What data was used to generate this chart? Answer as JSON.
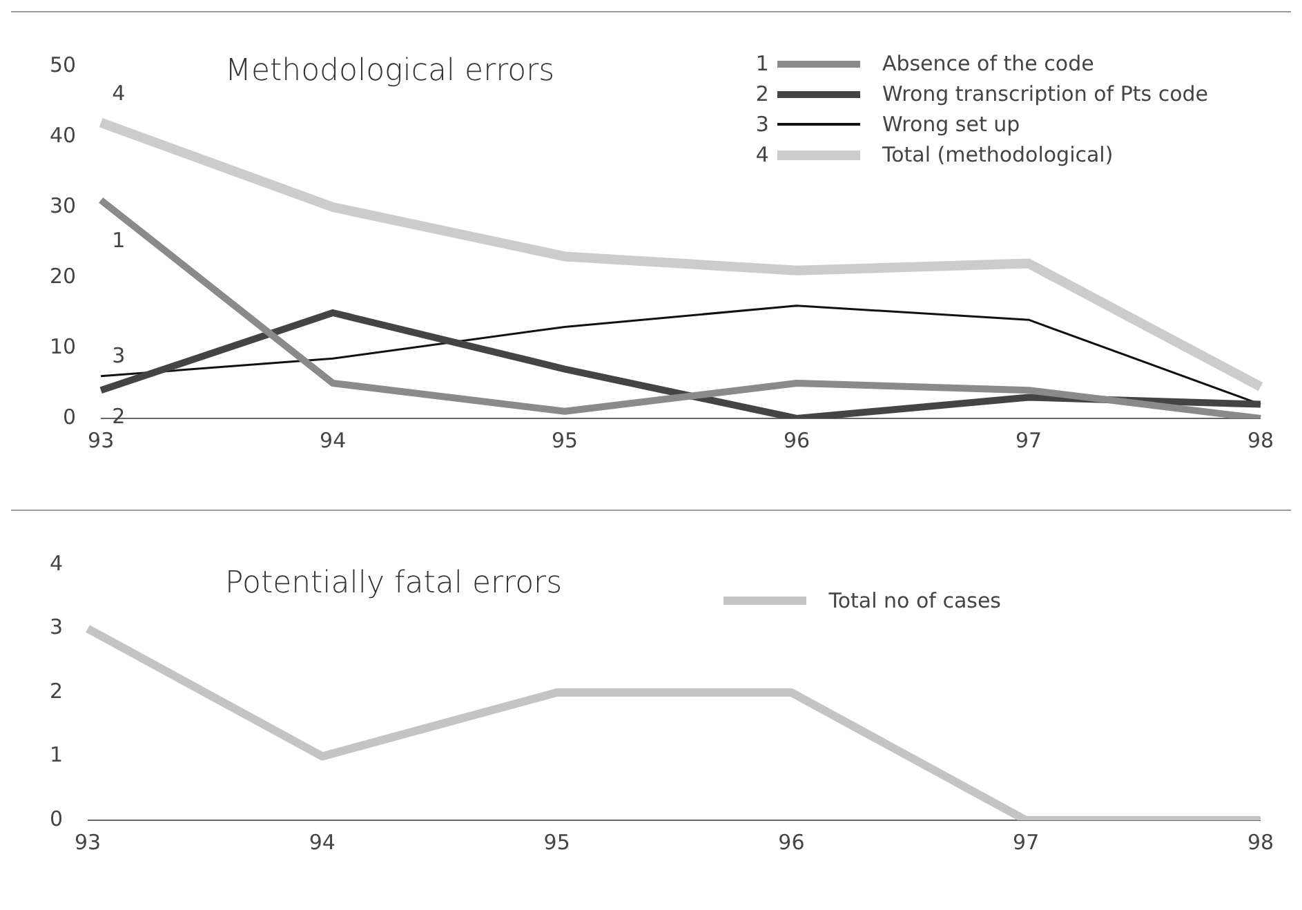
{
  "chart_data": [
    {
      "type": "line",
      "title": "Methodological errors",
      "categories": [
        "93",
        "94",
        "95",
        "96",
        "97",
        "98"
      ],
      "ylim": [
        0,
        50
      ],
      "yticks": [
        0,
        10,
        20,
        30,
        40,
        50
      ],
      "grid": false,
      "legend": "top right",
      "marker": "none",
      "series": [
        {
          "name": "Absence of the code",
          "color": "#8a8a8a",
          "values": [
            31,
            5,
            1,
            5,
            4,
            0
          ]
        },
        {
          "name": "Wrong transcription of Pts code",
          "color": "#444444",
          "values": [
            4,
            15,
            7,
            0,
            3,
            2
          ]
        },
        {
          "name": "Wrong set up",
          "color": "#111111",
          "values": [
            6,
            8.5,
            13,
            16,
            14,
            2
          ]
        },
        {
          "name": "Total (methodological)",
          "color": "#cccccc",
          "values": [
            42,
            30,
            23,
            21,
            22,
            4.5
          ]
        }
      ],
      "annotations": [
        "1",
        "2",
        "3",
        "4"
      ]
    },
    {
      "type": "line",
      "title": "Potentially fatal errors",
      "categories": [
        "93",
        "94",
        "95",
        "96",
        "97",
        "98"
      ],
      "ylim": [
        0,
        4
      ],
      "yticks": [
        0,
        1,
        2,
        3,
        4
      ],
      "grid": false,
      "legend": "top right",
      "marker": "none",
      "series": [
        {
          "name": "Total no of cases",
          "color": "#c4c4c4",
          "values": [
            3,
            1,
            2,
            2,
            0,
            0
          ]
        }
      ]
    }
  ]
}
